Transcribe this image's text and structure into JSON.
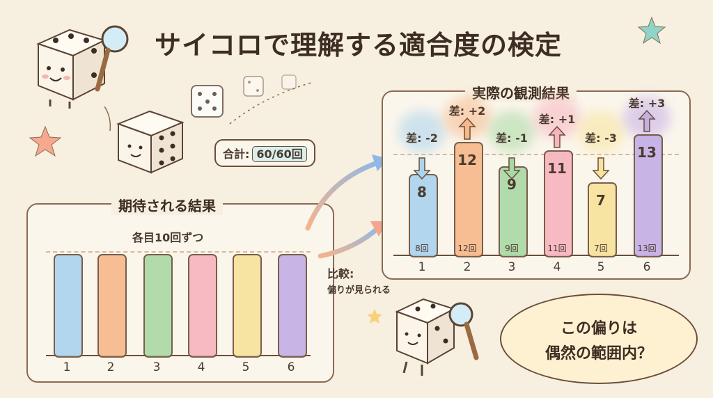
{
  "title": "サイコロで理解する適合度の検定",
  "roll_callout": {
    "label": "合計:",
    "value": "60/60回"
  },
  "expected_panel": {
    "heading": "期待される結果",
    "subheading": "各目10回ずつ"
  },
  "observed_panel": {
    "heading": "実際の観測結果"
  },
  "compare": {
    "label": "比較:",
    "note": "偏りが見られる"
  },
  "bubble": {
    "line1": "この偏りは",
    "line2": "偶然の範囲内？"
  },
  "chart_data": [
    {
      "type": "bar",
      "title": "期待される結果",
      "categories": [
        "1",
        "2",
        "3",
        "4",
        "5",
        "6"
      ],
      "values": [
        10,
        10,
        10,
        10,
        10,
        10
      ],
      "annotation": "各目10回ずつ",
      "colors": [
        "#a9d3ee",
        "#f7b88a",
        "#a9d9a4",
        "#f7b4bf",
        "#f7e39a",
        "#c3aee6"
      ]
    },
    {
      "type": "bar",
      "title": "実際の観測結果",
      "categories": [
        "1",
        "2",
        "3",
        "4",
        "5",
        "6"
      ],
      "values": [
        8,
        12,
        9,
        11,
        7,
        13
      ],
      "value_labels": [
        "8",
        "12",
        "9",
        "11",
        "7",
        "13"
      ],
      "count_labels": [
        "8回",
        "12回",
        "9回",
        "11回",
        "7回",
        "13回"
      ],
      "differences": [
        "差: -2",
        "差: +2",
        "差: -1",
        "差: +1",
        "差: -3",
        "差: +3"
      ],
      "diff_direction": [
        "down",
        "up",
        "down",
        "up",
        "down",
        "up"
      ],
      "colors": [
        "#a9d3ee",
        "#f7b88a",
        "#a9d9a4",
        "#f7b4bf",
        "#f7e39a",
        "#c3aee6"
      ]
    }
  ]
}
